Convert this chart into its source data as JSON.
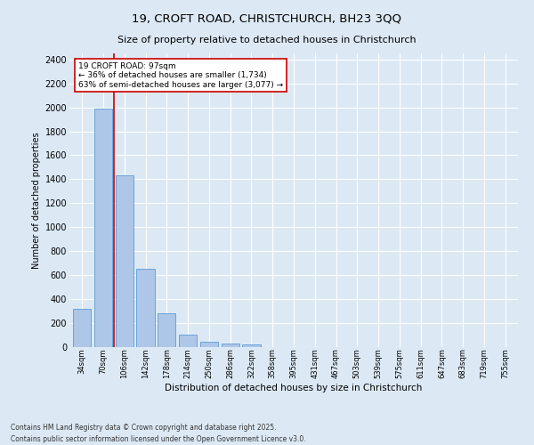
{
  "title_line1": "19, CROFT ROAD, CHRISTCHURCH, BH23 3QQ",
  "title_line2": "Size of property relative to detached houses in Christchurch",
  "xlabel": "Distribution of detached houses by size in Christchurch",
  "ylabel": "Number of detached properties",
  "footnote": "Contains HM Land Registry data © Crown copyright and database right 2025.\nContains public sector information licensed under the Open Government Licence v3.0.",
  "categories": [
    "34sqm",
    "70sqm",
    "106sqm",
    "142sqm",
    "178sqm",
    "214sqm",
    "250sqm",
    "286sqm",
    "322sqm",
    "358sqm",
    "395sqm",
    "431sqm",
    "467sqm",
    "503sqm",
    "539sqm",
    "575sqm",
    "611sqm",
    "647sqm",
    "683sqm",
    "719sqm",
    "755sqm"
  ],
  "values": [
    320,
    1990,
    1430,
    655,
    285,
    105,
    45,
    33,
    20,
    0,
    0,
    0,
    0,
    0,
    0,
    0,
    0,
    0,
    0,
    0,
    0
  ],
  "bar_color": "#aec6e8",
  "bar_edge_color": "#5b9bd5",
  "vline_color": "#cc0000",
  "annotation_text": "19 CROFT ROAD: 97sqm\n← 36% of detached houses are smaller (1,734)\n63% of semi-detached houses are larger (3,077) →",
  "annotation_box_edge_color": "#cc0000",
  "ylim": [
    0,
    2450
  ],
  "yticks": [
    0,
    200,
    400,
    600,
    800,
    1000,
    1200,
    1400,
    1600,
    1800,
    2000,
    2200,
    2400
  ],
  "bg_color": "#dce9f5",
  "grid_color": "#ffffff"
}
